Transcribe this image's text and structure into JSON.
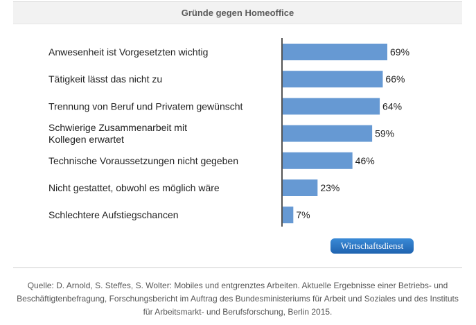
{
  "chart_data": {
    "type": "bar",
    "orientation": "horizontal",
    "title": "Gründe gegen Homeoffice",
    "categories": [
      "Anwesenheit ist Vorgesetzten wichtig",
      "Tätigkeit lässt das nicht zu",
      "Trennung von Beruf und Privatem gewünscht",
      "Schwierige Zusammenarbeit mit Kollegen erwartet",
      "Technische Voraussetzungen nicht gegeben",
      "Nicht gestattet, obwohl es möglich wäre",
      "Schlechtere Aufstiegschancen"
    ],
    "category_lines": [
      [
        "Anwesenheit ist Vorgesetzten wichtig"
      ],
      [
        "Tätigkeit lässt das nicht zu"
      ],
      [
        "Trennung von Beruf und Privatem gewünscht"
      ],
      [
        "Schwierige Zusammenarbeit mit",
        "Kollegen erwartet"
      ],
      [
        "Technische Voraussetzungen nicht gegeben"
      ],
      [
        "Nicht gestattet, obwohl es möglich wäre"
      ],
      [
        "Schlechtere Aufstiegschancen"
      ]
    ],
    "values": [
      69,
      66,
      64,
      59,
      46,
      23,
      7
    ],
    "value_labels": [
      "69%",
      "66%",
      "64%",
      "59%",
      "46%",
      "23%",
      "7%"
    ],
    "unit": "%",
    "xlim": [
      0,
      100
    ],
    "grid": false,
    "bar_color": "#6699d3"
  },
  "badge": {
    "label": "Wirtschaftsdienst"
  },
  "source": {
    "text": "Quelle: D. Arnold, S. Steffes, S. Wolter: Mobiles und entgrenztes Arbeiten. Aktuelle Ergebnisse einer Betriebs- und Beschäftigtenbefragung, Forschungsbericht im Auftrag des Bundesministeriums für Arbeit und Soziales und des Instituts für Arbeitsmarkt- und Berufsforschung, Berlin 2015."
  }
}
